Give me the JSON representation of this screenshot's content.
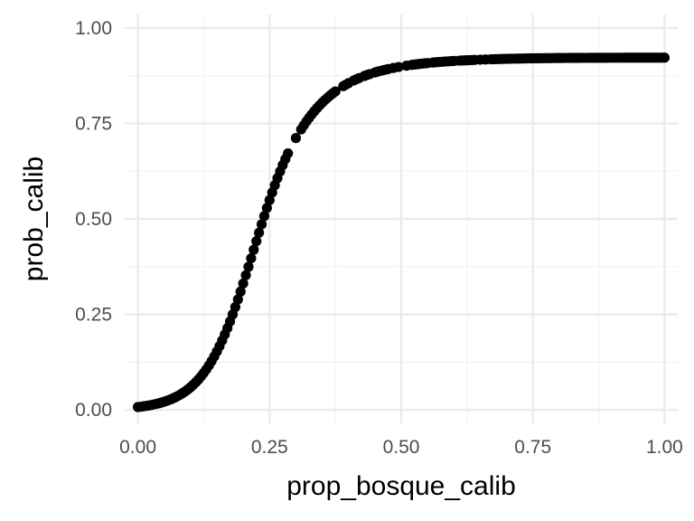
{
  "chart_data": {
    "type": "scatter",
    "title": "",
    "xlabel": "prop_bosque_calib",
    "ylabel": "prob_calib",
    "xlim": [
      -0.025,
      1.025
    ],
    "ylim": [
      -0.035,
      1.035
    ],
    "x_ticks": [
      0,
      0.25,
      0.5,
      0.75,
      1
    ],
    "x_tick_labels": [
      "0.00",
      "0.25",
      "0.50",
      "0.75",
      "1.00"
    ],
    "y_ticks": [
      0,
      0.25,
      0.5,
      0.75,
      1
    ],
    "y_tick_labels": [
      "0.00",
      "0.25",
      "0.50",
      "0.75",
      "1.00"
    ],
    "grid": true,
    "legend": "none",
    "point_color": "#000000",
    "series": [
      {
        "x": [
          0.0,
          0.005,
          0.01,
          0.015,
          0.02,
          0.025,
          0.03,
          0.035,
          0.04,
          0.045,
          0.05,
          0.055,
          0.06,
          0.065,
          0.07,
          0.075,
          0.08,
          0.085,
          0.09,
          0.095,
          0.1,
          0.105,
          0.11,
          0.115,
          0.12,
          0.125,
          0.13,
          0.135,
          0.14,
          0.145,
          0.15,
          0.155,
          0.16,
          0.165,
          0.17,
          0.175,
          0.18,
          0.185,
          0.19,
          0.195,
          0.2,
          0.205,
          0.21,
          0.215,
          0.22,
          0.225,
          0.23,
          0.235,
          0.24,
          0.245,
          0.25,
          0.255,
          0.26,
          0.265,
          0.27,
          0.275,
          0.28,
          0.285,
          0.3,
          0.31,
          0.315,
          0.32,
          0.325,
          0.33,
          0.335,
          0.34,
          0.345,
          0.35,
          0.355,
          0.36,
          0.365,
          0.37,
          0.375,
          0.39,
          0.395,
          0.4,
          0.41,
          0.415,
          0.42,
          0.43,
          0.435,
          0.44,
          0.45,
          0.455,
          0.46,
          0.465,
          0.47,
          0.475,
          0.485,
          0.495,
          0.51,
          0.52,
          0.525,
          0.53,
          0.535,
          0.54,
          0.545,
          0.55,
          0.56,
          0.565,
          0.57,
          0.575,
          0.58,
          0.585,
          0.59,
          0.595,
          0.6,
          0.61,
          0.615,
          0.62,
          0.625,
          0.63,
          0.635,
          0.64,
          0.65,
          0.66,
          0.67,
          0.675,
          0.68,
          0.685,
          0.69,
          0.695,
          0.7,
          0.705,
          0.71,
          0.715,
          0.72,
          0.725,
          0.73,
          0.735,
          0.74,
          0.745,
          0.75,
          0.755,
          0.76,
          0.765,
          0.77,
          0.775,
          0.78,
          0.785,
          0.79,
          0.795,
          0.8,
          0.805,
          0.81,
          0.815,
          0.82,
          0.825,
          0.83,
          0.835,
          0.84,
          0.845,
          0.85,
          0.855,
          0.86,
          0.865,
          0.87,
          0.875,
          0.88,
          0.885,
          0.89,
          0.895,
          0.9,
          0.905,
          0.91,
          0.915,
          0.92,
          0.925,
          0.93,
          0.935,
          0.94,
          0.945,
          0.95,
          0.955,
          0.96,
          0.965,
          0.97,
          0.975,
          0.98,
          0.985,
          0.99,
          0.995,
          1.0
        ],
        "y": [
          0.0076,
          0.0084,
          0.0094,
          0.0104,
          0.0115,
          0.0128,
          0.0142,
          0.0157,
          0.0174,
          0.0194,
          0.0215,
          0.0238,
          0.0264,
          0.0292,
          0.0324,
          0.0359,
          0.0397,
          0.044,
          0.0486,
          0.0538,
          0.0594,
          0.0656,
          0.0724,
          0.0798,
          0.0879,
          0.0967,
          0.1063,
          0.1167,
          0.1279,
          0.14,
          0.153,
          0.1669,
          0.1817,
          0.1974,
          0.2141,
          0.2316,
          0.25,
          0.2692,
          0.2891,
          0.3097,
          0.3309,
          0.3525,
          0.3745,
          0.3968,
          0.4192,
          0.4416,
          0.4638,
          0.4858,
          0.5074,
          0.5286,
          0.5491,
          0.569,
          0.5882,
          0.6066,
          0.6241,
          0.6408,
          0.6566,
          0.6715,
          0.7116,
          0.7342,
          0.7448,
          0.7549,
          0.7643,
          0.7733,
          0.7817,
          0.7897,
          0.7972,
          0.8043,
          0.8109,
          0.8171,
          0.823,
          0.8285,
          0.8336,
          0.8474,
          0.8515,
          0.8553,
          0.8623,
          0.8655,
          0.8685,
          0.874,
          0.8765,
          0.8789,
          0.8832,
          0.8852,
          0.8871,
          0.8889,
          0.8905,
          0.8921,
          0.895,
          0.8976,
          0.901,
          0.903,
          0.9039,
          0.9048,
          0.9056,
          0.9064,
          0.9071,
          0.9078,
          0.9092,
          0.9098,
          0.9104,
          0.9109,
          0.9115,
          0.912,
          0.9124,
          0.9129,
          0.9133,
          0.9141,
          0.9145,
          0.9149,
          0.9152,
          0.9155,
          0.9158,
          0.9161,
          0.9167,
          0.9172,
          0.9177,
          0.9179,
          0.9181,
          0.9183,
          0.9185,
          0.9187,
          0.9189,
          0.919,
          0.9192,
          0.9194,
          0.9195,
          0.9196,
          0.9198,
          0.9199,
          0.92,
          0.9201,
          0.9202,
          0.9203,
          0.9204,
          0.9205,
          0.9206,
          0.9207,
          0.9208,
          0.9208,
          0.9209,
          0.921,
          0.921,
          0.9211,
          0.9212,
          0.9212,
          0.9213,
          0.9213,
          0.9214,
          0.9214,
          0.9214,
          0.9215,
          0.9215,
          0.9215,
          0.9216,
          0.9216,
          0.9216,
          0.9217,
          0.9217,
          0.9217,
          0.9217,
          0.9218,
          0.9218,
          0.9218,
          0.9218,
          0.9218,
          0.9218,
          0.9219,
          0.9219,
          0.9219,
          0.9219,
          0.9219,
          0.9219,
          0.9219,
          0.9219,
          0.9219,
          0.9219,
          0.9219,
          0.922,
          0.922,
          0.922,
          0.922,
          0.922
        ]
      }
    ]
  }
}
